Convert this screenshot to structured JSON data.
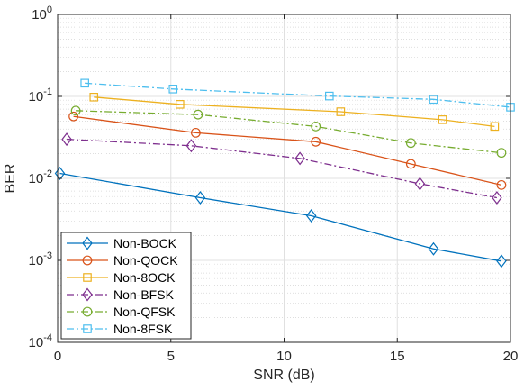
{
  "chart_data": {
    "type": "line",
    "title": "",
    "xlabel": "SNR (dB)",
    "ylabel": "BER",
    "xlim": [
      0,
      20
    ],
    "ylim": [
      0.0001,
      1
    ],
    "y_scale": "log",
    "grid": true,
    "legend_position": "bottom-left",
    "x_ticks": [
      {
        "value": 0,
        "label": "0"
      },
      {
        "value": 5,
        "label": "5"
      },
      {
        "value": 10,
        "label": "10"
      },
      {
        "value": 15,
        "label": "15"
      },
      {
        "value": 20,
        "label": "20"
      }
    ],
    "y_ticks": [
      {
        "value": 0.0001,
        "base": "10",
        "exp": "-4"
      },
      {
        "value": 0.001,
        "base": "10",
        "exp": "-3"
      },
      {
        "value": 0.01,
        "base": "10",
        "exp": "-2"
      },
      {
        "value": 0.1,
        "base": "10",
        "exp": "-1"
      },
      {
        "value": 1,
        "base": "10",
        "exp": "0"
      }
    ],
    "series": [
      {
        "name": "Non-BOCK",
        "color": "#0072BD",
        "marker": "diamond",
        "dash": "solid",
        "x": [
          0.1,
          6.3,
          11.2,
          16.6,
          19.6
        ],
        "y": [
          0.0115,
          0.0058,
          0.0035,
          0.00138,
          0.00098
        ]
      },
      {
        "name": "Non-QOCK",
        "color": "#D95319",
        "marker": "circle",
        "dash": "solid",
        "x": [
          0.7,
          6.1,
          11.4,
          15.6,
          19.6
        ],
        "y": [
          0.057,
          0.036,
          0.028,
          0.015,
          0.0083
        ]
      },
      {
        "name": "Non-8OCK",
        "color": "#EDB120",
        "marker": "square",
        "dash": "solid",
        "x": [
          1.6,
          5.4,
          12.5,
          17.0,
          19.3
        ],
        "y": [
          0.098,
          0.08,
          0.065,
          0.052,
          0.043
        ]
      },
      {
        "name": "Non-BFSK",
        "color": "#7E2F8E",
        "marker": "diamond",
        "dash": "dashdot",
        "x": [
          0.4,
          5.9,
          10.7,
          16.0,
          19.4
        ],
        "y": [
          0.03,
          0.025,
          0.0175,
          0.0086,
          0.0058
        ]
      },
      {
        "name": "Non-QFSK",
        "color": "#77AC30",
        "marker": "circle",
        "dash": "dashdot",
        "x": [
          0.8,
          6.2,
          11.4,
          15.6,
          19.6
        ],
        "y": [
          0.067,
          0.06,
          0.043,
          0.027,
          0.0205
        ]
      },
      {
        "name": "Non-8FSK",
        "color": "#4DBEEE",
        "marker": "square",
        "dash": "dashdot",
        "x": [
          1.2,
          5.1,
          12.0,
          16.6,
          20.0
        ],
        "y": [
          0.145,
          0.123,
          0.101,
          0.092,
          0.074
        ]
      }
    ]
  }
}
